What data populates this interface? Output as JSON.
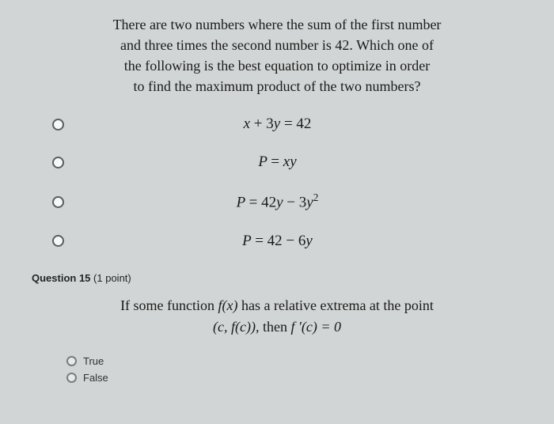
{
  "q14": {
    "prompt_line1": "There are two numbers where the sum of the first number",
    "prompt_line2": "and three times the second number is 42. Which one of",
    "prompt_line3": "the following is the best equation to optimize in order",
    "prompt_line4": "to find the maximum product of the two numbers?",
    "options": [
      {
        "equation_html": "<span class='math'>x</span> <span class='rm'>+ 3</span><span class='math'>y</span> <span class='rm'>= 42</span>"
      },
      {
        "equation_html": "<span class='math'>P</span> <span class='rm'>=</span> <span class='math'>xy</span>"
      },
      {
        "equation_html": "<span class='math'>P</span> <span class='rm'>= 42</span><span class='math'>y</span> <span class='rm'>− 3</span><span class='math'>y</span><sup class='rm'>2</sup>"
      },
      {
        "equation_html": "<span class='math'>P</span> <span class='rm'>= 42 − 6</span><span class='math'>y</span>"
      }
    ]
  },
  "q15": {
    "header_bold": "Question 15",
    "header_paren": "(1 point)",
    "text_before": "If some function ",
    "fx": "f(x)",
    "text_mid": " has a relative extrema at the point",
    "line2_prefix": "(c, f(c)), ",
    "line2_then": "then ",
    "fprime": "f ′(c) = 0",
    "options": [
      {
        "label": "True"
      },
      {
        "label": "False"
      }
    ]
  },
  "colors": {
    "background": "#d2d5d5",
    "text": "#1a1a1a",
    "radio_border": "#5a5e60"
  },
  "typography": {
    "question_fontsize": 18,
    "equation_fontsize": 19,
    "header_fontsize": 13,
    "tf_fontsize": 13
  }
}
